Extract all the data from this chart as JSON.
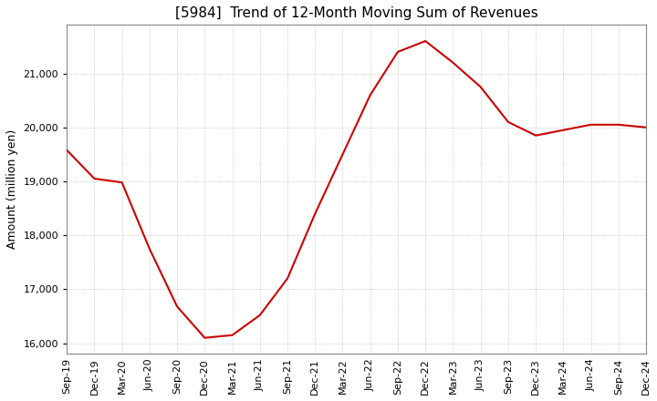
{
  "title": "[5984]  Trend of 12-Month Moving Sum of Revenues",
  "ylabel": "Amount (million yen)",
  "x_labels": [
    "Sep-19",
    "Dec-19",
    "Mar-20",
    "Jun-20",
    "Sep-20",
    "Dec-20",
    "Mar-21",
    "Jun-21",
    "Sep-21",
    "Dec-21",
    "Mar-22",
    "Jun-22",
    "Sep-22",
    "Dec-22",
    "Mar-23",
    "Jun-23",
    "Sep-23",
    "Dec-23",
    "Mar-24",
    "Jun-24",
    "Sep-24",
    "Dec-24"
  ],
  "values": [
    19580,
    19050,
    18980,
    17750,
    16680,
    16100,
    16150,
    16520,
    17200,
    18400,
    19500,
    20600,
    21400,
    21600,
    21200,
    20750,
    20100,
    19850,
    19950,
    20050,
    20050,
    20000
  ],
  "ylim": [
    15800,
    21900
  ],
  "yticks": [
    16000,
    17000,
    18000,
    19000,
    20000,
    21000
  ],
  "line_color": "#cc0000",
  "grid_color": "#bbbbbb",
  "background_color": "#ffffff",
  "title_fontsize": 11,
  "label_fontsize": 9,
  "tick_fontsize": 8
}
